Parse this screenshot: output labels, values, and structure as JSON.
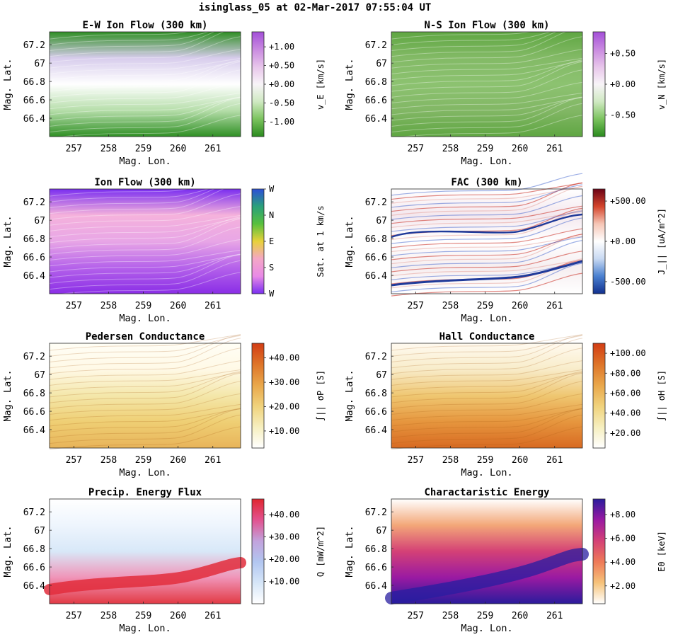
{
  "figure": {
    "title": "isinglass_05 at 02-Mar-2017 07:55:04 UT"
  },
  "chart_data": [
    {
      "type": "heatmap",
      "title": "E-W Ion Flow (300 km)",
      "xlabel": "Mag. Lon.",
      "ylabel": "Mag. Lat.",
      "xlim": [
        256.3,
        261.8
      ],
      "ylim": [
        66.2,
        67.34
      ],
      "xticks": [
        "257",
        "258",
        "259",
        "260",
        "261"
      ],
      "yticks": [
        "66.4",
        "66.6",
        "66.8",
        "67",
        "67.2"
      ],
      "colorbar": {
        "label": "v_E [km/s]",
        "colormap": "PRGn",
        "clim": [
          -1.4,
          1.4
        ],
        "ticks": [
          "+1.00",
          "+0.50",
          "+0.00",
          "-0.50",
          "-1.00"
        ],
        "tick_values": [
          1.0,
          0.5,
          0.0,
          -0.5,
          -1.0
        ]
      }
    },
    {
      "type": "heatmap",
      "title": "N-S Ion Flow (300 km)",
      "xlabel": "Mag. Lon.",
      "ylabel": "Mag. Lat.",
      "xlim": [
        256.3,
        261.8
      ],
      "ylim": [
        66.2,
        67.34
      ],
      "xticks": [
        "257",
        "258",
        "259",
        "260",
        "261"
      ],
      "yticks": [
        "66.4",
        "66.6",
        "66.8",
        "67",
        "67.2"
      ],
      "colorbar": {
        "label": "v_N [km/s]",
        "colormap": "PRGn",
        "clim": [
          -0.85,
          0.85
        ],
        "ticks": [
          "+0.50",
          "+0.00",
          "-0.50"
        ],
        "tick_values": [
          0.5,
          0.0,
          -0.5
        ]
      }
    },
    {
      "type": "heatmap",
      "title": "Ion Flow (300 km)",
      "xlabel": "Mag. Lon.",
      "ylabel": "Mag. Lat.",
      "xlim": [
        256.3,
        261.8
      ],
      "ylim": [
        66.2,
        67.34
      ],
      "xticks": [
        "257",
        "258",
        "259",
        "260",
        "261"
      ],
      "yticks": [
        "66.4",
        "66.6",
        "66.8",
        "67",
        "67.2"
      ],
      "colorbar": {
        "label": "Sat. at 1 km/s",
        "colormap": "direction",
        "clim": [
          0,
          1
        ],
        "ticks": [
          "W",
          "N",
          "E",
          "S",
          "W"
        ],
        "tick_values": [
          1.0,
          0.75,
          0.5,
          0.25,
          0.0
        ]
      }
    },
    {
      "type": "heatmap",
      "title": "FAC (300 km)",
      "xlabel": "Mag. Lon.",
      "ylabel": "Mag. Lat.",
      "xlim": [
        256.3,
        261.8
      ],
      "ylim": [
        66.2,
        67.34
      ],
      "xticks": [
        "257",
        "258",
        "259",
        "260",
        "261"
      ],
      "yticks": [
        "66.4",
        "66.6",
        "66.8",
        "67",
        "67.2"
      ],
      "colorbar": {
        "label": "J_|| [uA/m^2]",
        "colormap": "RdBu_r",
        "clim": [
          -650,
          650
        ],
        "ticks": [
          "+500.00",
          "+0.00",
          "-500.00"
        ],
        "tick_values": [
          500,
          0,
          -500
        ]
      }
    },
    {
      "type": "heatmap",
      "title": "Pedersen Conductance",
      "xlabel": "Mag. Lon.",
      "ylabel": "Mag. Lat.",
      "xlim": [
        256.3,
        261.8
      ],
      "ylim": [
        66.2,
        67.34
      ],
      "xticks": [
        "257",
        "258",
        "259",
        "260",
        "261"
      ],
      "yticks": [
        "66.4",
        "66.6",
        "66.8",
        "67",
        "67.2"
      ],
      "colorbar": {
        "label": "∫|| σP [S]",
        "colormap": "YlOrRd",
        "clim": [
          3,
          46
        ],
        "ticks": [
          "+40.00",
          "+30.00",
          "+20.00",
          "+10.00"
        ],
        "tick_values": [
          40,
          30,
          20,
          10
        ]
      }
    },
    {
      "type": "heatmap",
      "title": "Hall Conductance",
      "xlabel": "Mag. Lon.",
      "ylabel": "Mag. Lat.",
      "xlim": [
        256.3,
        261.8
      ],
      "ylim": [
        66.2,
        67.34
      ],
      "xticks": [
        "257",
        "258",
        "259",
        "260",
        "261"
      ],
      "yticks": [
        "66.4",
        "66.6",
        "66.8",
        "67",
        "67.2"
      ],
      "colorbar": {
        "label": "∫|| σH [S]",
        "colormap": "YlOrRd",
        "clim": [
          5,
          110
        ],
        "ticks": [
          "+100.00",
          "+80.00",
          "+60.00",
          "+40.00",
          "+20.00"
        ],
        "tick_values": [
          100,
          80,
          60,
          40,
          20
        ]
      }
    },
    {
      "type": "heatmap",
      "title": "Precip. Energy Flux",
      "xlabel": "Mag. Lon.",
      "ylabel": "Mag. Lat.",
      "xlim": [
        256.3,
        261.8
      ],
      "ylim": [
        66.2,
        67.34
      ],
      "xticks": [
        "257",
        "258",
        "259",
        "260",
        "261"
      ],
      "yticks": [
        "66.4",
        "66.6",
        "66.8",
        "67",
        "67.2"
      ],
      "colorbar": {
        "label": "Q [mW/m^2]",
        "colormap": "blue-white-red",
        "clim": [
          0,
          47
        ],
        "ticks": [
          "+40.00",
          "+30.00",
          "+20.00",
          "+10.00"
        ],
        "tick_values": [
          40,
          30,
          20,
          10
        ]
      }
    },
    {
      "type": "heatmap",
      "title": "Charactaristic Energy",
      "xlabel": "Mag. Lon.",
      "ylabel": "Mag. Lat.",
      "xlim": [
        256.3,
        261.8
      ],
      "ylim": [
        66.2,
        67.34
      ],
      "xticks": [
        "257",
        "258",
        "259",
        "260",
        "261"
      ],
      "yticks": [
        "66.4",
        "66.6",
        "66.8",
        "67",
        "67.2"
      ],
      "colorbar": {
        "label": "E0 [keV]",
        "colormap": "plasma_r",
        "clim": [
          0.5,
          9.3
        ],
        "ticks": [
          "+8.00",
          "+6.00",
          "+4.00",
          "+2.00"
        ],
        "tick_values": [
          8,
          6,
          4,
          2
        ]
      }
    }
  ]
}
